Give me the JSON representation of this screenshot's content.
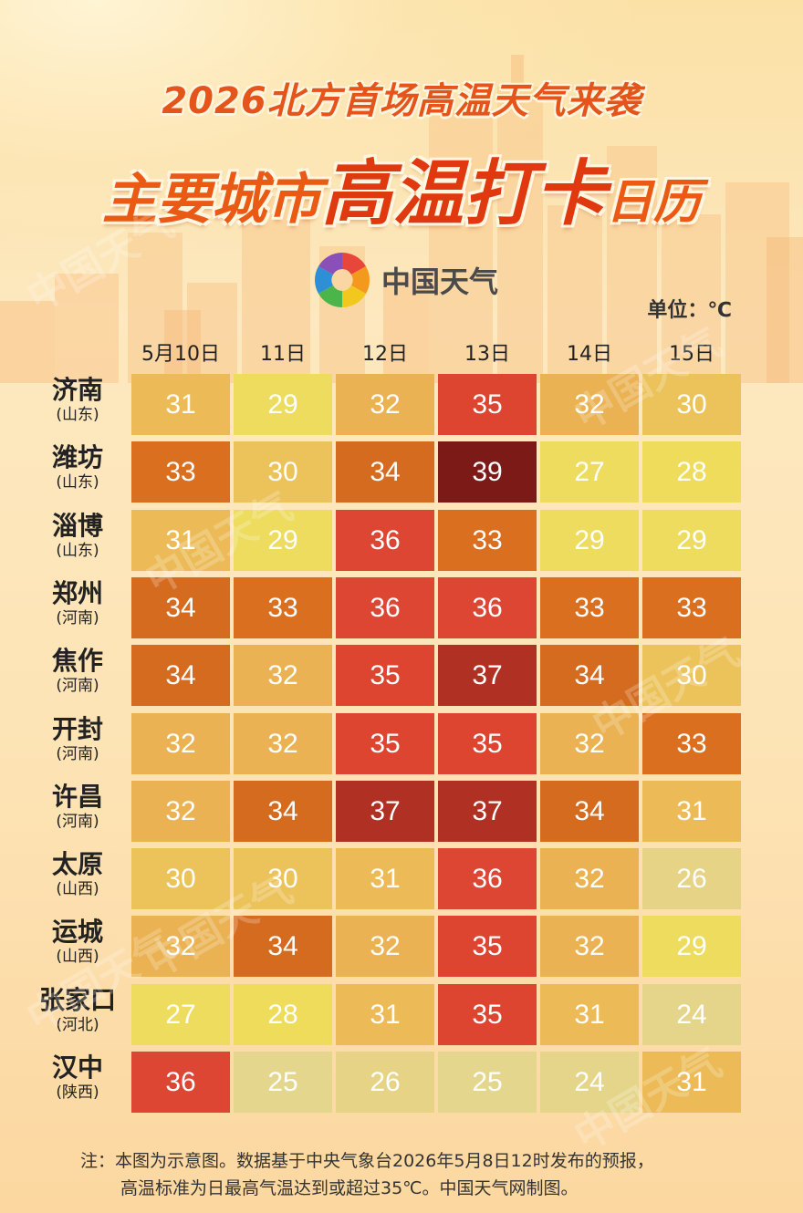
{
  "header": {
    "title_top": "2026北方首场高温天气来袭",
    "title_main_1": "主要城市",
    "title_main_2": "高温打卡",
    "title_main_3": "日历",
    "brand": "中国天气",
    "unit": "单位：℃"
  },
  "watermark": "中国天气",
  "colors": {
    "t24": "#e5d58a",
    "t25": "#e4d78d",
    "t26": "#e6d385",
    "t27": "#eedc5f",
    "t28": "#efdc5a",
    "t29": "#eddc5d",
    "t30": "#ecc25a",
    "t31": "#ecbb57",
    "t32": "#eab252",
    "t33": "#d96f1f",
    "t34": "#d46b1f",
    "t35": "#dd4530",
    "t36": "#de4634",
    "t37": "#b13024",
    "t39": "#7c1a18",
    "title": "#e5541a"
  },
  "chart_data": {
    "type": "table",
    "title": "2026北方首场高温天气来袭 主要城市高温打卡日历",
    "unit": "℃",
    "columns": [
      "5月10日",
      "11日",
      "12日",
      "13日",
      "14日",
      "15日"
    ],
    "rows": [
      {
        "city": "济南",
        "province": "(山东)",
        "values": [
          31,
          29,
          32,
          35,
          32,
          30
        ]
      },
      {
        "city": "潍坊",
        "province": "(山东)",
        "values": [
          33,
          30,
          34,
          39,
          27,
          28
        ]
      },
      {
        "city": "淄博",
        "province": "(山东)",
        "values": [
          31,
          29,
          36,
          33,
          29,
          29
        ]
      },
      {
        "city": "郑州",
        "province": "(河南)",
        "values": [
          34,
          33,
          36,
          36,
          33,
          33
        ]
      },
      {
        "city": "焦作",
        "province": "(河南)",
        "values": [
          34,
          32,
          35,
          37,
          34,
          30
        ]
      },
      {
        "city": "开封",
        "province": "(河南)",
        "values": [
          32,
          32,
          35,
          35,
          32,
          33
        ]
      },
      {
        "city": "许昌",
        "province": "(河南)",
        "values": [
          32,
          34,
          37,
          37,
          34,
          31
        ]
      },
      {
        "city": "太原",
        "province": "(山西)",
        "values": [
          30,
          30,
          31,
          36,
          32,
          26
        ]
      },
      {
        "city": "运城",
        "province": "(山西)",
        "values": [
          32,
          34,
          32,
          35,
          32,
          29
        ]
      },
      {
        "city": "张家口",
        "province": "(河北)",
        "values": [
          27,
          28,
          31,
          35,
          31,
          24
        ]
      },
      {
        "city": "汉中",
        "province": "(陕西)",
        "values": [
          36,
          25,
          26,
          25,
          24,
          31
        ]
      }
    ]
  },
  "footer": {
    "note_line1": "注：本图为示意图。数据基于中央气象台2026年5月8日12时发布的预报，",
    "note_line2": "高温标准为日最高气温达到或超过35℃。中国天气网制图。"
  }
}
